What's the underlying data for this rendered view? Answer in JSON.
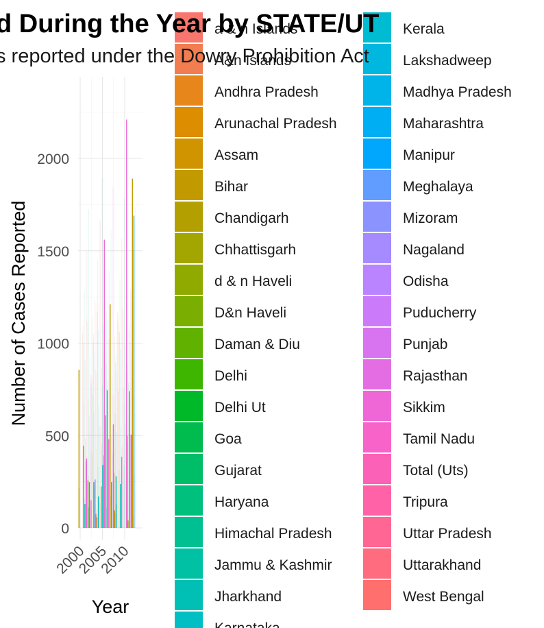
{
  "chart_data": {
    "type": "bar",
    "title": "d During the Year by STATE/UT",
    "subtitle": "s reported under the Dowry Prohibition Act",
    "xlabel": "Year",
    "ylabel": "Number of Cases Reported",
    "x_ticks": [
      "2000",
      "2005",
      "2010"
    ],
    "y_ticks": [
      "0",
      "500",
      "1000",
      "1500",
      "2000"
    ],
    "x_range": [
      1999.6,
      2012.6
    ],
    "ylim": [
      0,
      2420
    ],
    "grid": true,
    "legend_position": "right",
    "legend_columns": [
      [
        "a & n Islands",
        "A&n Islands",
        "Andhra Pradesh",
        "Arunachal Pradesh",
        "Assam",
        "Bihar",
        "Chandigarh",
        "Chhattisgarh",
        "d & n Haveli",
        "D&n Haveli",
        "Daman & Diu",
        "Delhi",
        "Delhi Ut",
        "Goa",
        "Gujarat",
        "Haryana",
        "Himachal Pradesh",
        "Jammu & Kashmir",
        "Jharkhand",
        "Karnataka"
      ],
      [
        "Kerala",
        "Lakshadweep",
        "Madhya Pradesh",
        "Maharashtra",
        "Manipur",
        "Meghalaya",
        "Mizoram",
        "Nagaland",
        "Odisha",
        "Puducherry",
        "Punjab",
        "Rajasthan",
        "Sikkim",
        "Tamil Nadu",
        "Total (Uts)",
        "Tripura",
        "Uttar Pradesh",
        "Uttarakhand",
        "West Bengal"
      ]
    ],
    "colors": [
      "#F8766D",
      "#F17D50",
      "#E7861B",
      "#DC8D00",
      "#D09400",
      "#C29A00",
      "#B3A000",
      "#A3A500",
      "#90AA00",
      "#7AAE00",
      "#61B200",
      "#3EB600",
      "#00B928",
      "#00BB4E",
      "#00BE68",
      "#00C07E",
      "#00C092",
      "#00C1A4",
      "#00C0B5",
      "#00BFC4",
      "#00BCD2",
      "#00B8DF",
      "#00B4EA",
      "#00AEF4",
      "#00A7FC",
      "#619CFF",
      "#8B93FF",
      "#A68AFF",
      "#BA83FF",
      "#CB7BF9",
      "#D874EF",
      "#E46DE4",
      "#EF67D7",
      "#F763C8",
      "#FC61B8",
      "#FF62A6",
      "#FF6693",
      "#FF6C7F",
      "#FF6F6D"
    ],
    "series": [
      {
        "name": "Bihar",
        "values": [
          [
            2000,
            855
          ],
          [
            2001,
            445
          ],
          [
            2002,
            258
          ],
          [
            2005,
            224
          ],
          [
            2006,
            610
          ],
          [
            2007,
            1210
          ],
          [
            2008,
            95
          ],
          [
            2012,
            1890
          ]
        ]
      },
      {
        "name": "Chandigarh",
        "values": [
          [
            2000,
            215
          ],
          [
            2002,
            108
          ],
          [
            2004,
            58
          ],
          [
            2008,
            80
          ],
          [
            2011,
            40
          ]
        ]
      },
      {
        "name": "Jammu & Kashmir",
        "values": [
          [
            2002,
            112
          ],
          [
            2006,
            110
          ],
          [
            2007,
            248
          ]
        ]
      },
      {
        "name": "Jharkhand",
        "values": [
          [
            2001,
            130
          ],
          [
            2002,
            248
          ],
          [
            2003,
            248
          ],
          [
            2005,
            340
          ],
          [
            2006,
            745
          ],
          [
            2008,
            280
          ],
          [
            2009,
            238
          ],
          [
            2012,
            1690
          ]
        ]
      },
      {
        "name": "Karnataka",
        "values": [
          [
            2004,
            170
          ],
          [
            2008,
            128
          ],
          [
            2011,
            740
          ]
        ]
      },
      {
        "name": "Odisha",
        "values": [
          [
            2005,
            392
          ],
          [
            2009,
            385
          ]
        ]
      },
      {
        "name": "Puducherry",
        "values": [
          [
            2001,
            360
          ],
          [
            2003,
            262
          ]
        ]
      },
      {
        "name": "Sikkim",
        "values": [
          [
            2001,
            375
          ],
          [
            2005,
            1560
          ],
          [
            2006,
            480
          ],
          [
            2010,
            2210
          ],
          [
            2011,
            505
          ]
        ]
      },
      {
        "name": "Tamil Nadu",
        "values": [
          [
            2002,
            150
          ],
          [
            2007,
            560
          ]
        ]
      },
      {
        "name": "Uttar Pradesh",
        "values": [
          [
            2003,
            76
          ],
          [
            2007,
            300
          ]
        ]
      },
      {
        "name": "West Bengal",
        "values": [
          [
            2010,
            500
          ],
          [
            2011,
            505
          ]
        ]
      }
    ]
  }
}
